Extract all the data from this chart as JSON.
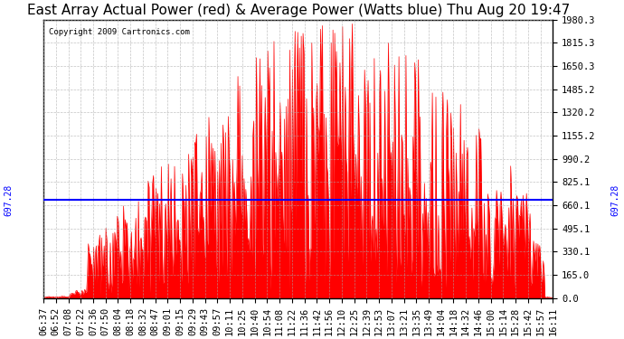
{
  "title": "East Array Actual Power (red) & Average Power (Watts blue) Thu Aug 20 19:47",
  "copyright": "Copyright 2009 Cartronics.com",
  "avg_power": 697.28,
  "y_max": 1980.3,
  "y_min": 0.0,
  "y_ticks": [
    0.0,
    165.0,
    330.1,
    495.1,
    660.1,
    825.1,
    990.2,
    1155.2,
    1320.2,
    1485.2,
    1650.3,
    1815.3,
    1980.3
  ],
  "x_labels": [
    "06:37",
    "06:52",
    "07:08",
    "07:22",
    "07:36",
    "07:50",
    "08:04",
    "08:18",
    "08:32",
    "08:47",
    "09:01",
    "09:15",
    "09:29",
    "09:43",
    "09:57",
    "10:11",
    "10:25",
    "10:40",
    "10:54",
    "11:08",
    "11:22",
    "11:36",
    "11:42",
    "11:56",
    "12:10",
    "12:25",
    "12:39",
    "12:53",
    "13:07",
    "13:21",
    "13:35",
    "13:49",
    "14:04",
    "14:18",
    "14:32",
    "14:46",
    "15:00",
    "15:14",
    "15:28",
    "15:42",
    "15:57",
    "16:11"
  ],
  "background_color": "#ffffff",
  "plot_bg_color": "#ffffff",
  "bar_color": "#ff0000",
  "line_color": "#0000ff",
  "grid_color": "#aaaaaa",
  "title_fontsize": 11,
  "tick_fontsize": 7.5
}
